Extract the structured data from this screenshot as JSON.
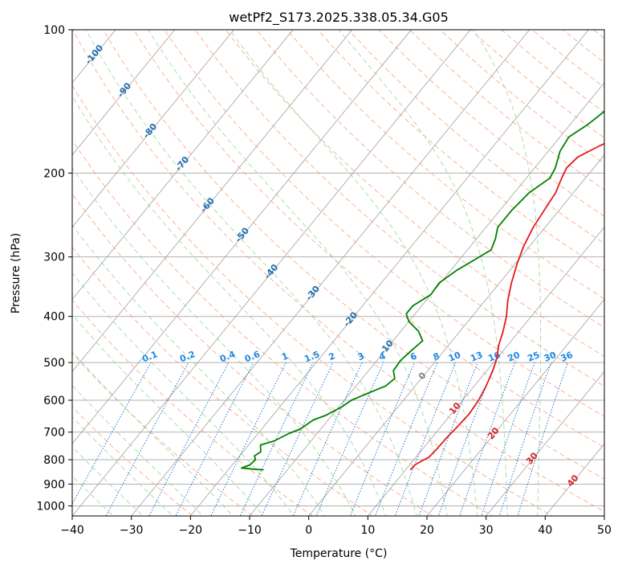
{
  "chart_data": {
    "type": "line",
    "title": "wetPf2_S173.2025.338.05.34.G05",
    "xlabel": "Temperature (°C)",
    "ylabel": "Pressure (hPa)",
    "xlim": [
      -40,
      50
    ],
    "ylim": [
      1050,
      100
    ],
    "y_scale": "log",
    "x_ticks": [
      "−40",
      "−30",
      "−20",
      "−10",
      "0",
      "10",
      "20",
      "30",
      "40",
      "50"
    ],
    "y_ticks": [
      "100",
      "200",
      "300",
      "400",
      "500",
      "600",
      "700",
      "800",
      "900",
      "1000"
    ],
    "grid": true,
    "series": [
      {
        "color": "#e41a1c",
        "points": [
          {
            "p": 840,
            "t": 10.8
          },
          {
            "p": 820,
            "t": 10.9
          },
          {
            "p": 805,
            "t": 11.5
          },
          {
            "p": 790,
            "t": 12.2
          },
          {
            "p": 760,
            "t": 12.4
          },
          {
            "p": 720,
            "t": 12.5
          },
          {
            "p": 680,
            "t": 12.8
          },
          {
            "p": 640,
            "t": 13.0
          },
          {
            "p": 600,
            "t": 12.7
          },
          {
            "p": 560,
            "t": 12.0
          },
          {
            "p": 520,
            "t": 11.0
          },
          {
            "p": 490,
            "t": 10.0
          },
          {
            "p": 460,
            "t": 8.5
          },
          {
            "p": 430,
            "t": 7.3
          },
          {
            "p": 400,
            "t": 5.8
          },
          {
            "p": 370,
            "t": 3.8
          },
          {
            "p": 340,
            "t": 2.0
          },
          {
            "p": 310,
            "t": 0.3
          },
          {
            "p": 285,
            "t": -1.0
          },
          {
            "p": 260,
            "t": -2.0
          },
          {
            "p": 240,
            "t": -2.5
          },
          {
            "p": 220,
            "t": -3.0
          },
          {
            "p": 205,
            "t": -4.0
          },
          {
            "p": 195,
            "t": -4.6
          },
          {
            "p": 185,
            "t": -4.2
          },
          {
            "p": 175,
            "t": -2.0
          },
          {
            "p": 165,
            "t": 1.0
          },
          {
            "p": 155,
            "t": 3.5
          },
          {
            "p": 145,
            "t": 4.8
          },
          {
            "p": 135,
            "t": 5.8
          },
          {
            "p": 125,
            "t": 8.5
          },
          {
            "p": 115,
            "t": 11.5
          },
          {
            "p": 108,
            "t": 14.5
          },
          {
            "p": 100,
            "t": 17.0
          }
        ]
      },
      {
        "color": "#008000",
        "points": [
          {
            "p": 840,
            "t": -14.0
          },
          {
            "p": 837,
            "t": -16.0
          },
          {
            "p": 833,
            "t": -18.0
          },
          {
            "p": 820,
            "t": -17.0
          },
          {
            "p": 800,
            "t": -16.8
          },
          {
            "p": 785,
            "t": -17.5
          },
          {
            "p": 770,
            "t": -17.0
          },
          {
            "p": 745,
            "t": -18.0
          },
          {
            "p": 730,
            "t": -16.2
          },
          {
            "p": 705,
            "t": -14.8
          },
          {
            "p": 690,
            "t": -13.5
          },
          {
            "p": 660,
            "t": -12.5
          },
          {
            "p": 645,
            "t": -11.0
          },
          {
            "p": 620,
            "t": -9.5
          },
          {
            "p": 600,
            "t": -8.8
          },
          {
            "p": 580,
            "t": -7.0
          },
          {
            "p": 560,
            "t": -5.0
          },
          {
            "p": 540,
            "t": -4.5
          },
          {
            "p": 520,
            "t": -5.8
          },
          {
            "p": 495,
            "t": -6.0
          },
          {
            "p": 470,
            "t": -5.5
          },
          {
            "p": 450,
            "t": -5.0
          },
          {
            "p": 430,
            "t": -7.0
          },
          {
            "p": 410,
            "t": -10.0
          },
          {
            "p": 395,
            "t": -11.5
          },
          {
            "p": 380,
            "t": -11.5
          },
          {
            "p": 360,
            "t": -10.0
          },
          {
            "p": 340,
            "t": -10.2
          },
          {
            "p": 320,
            "t": -9.0
          },
          {
            "p": 305,
            "t": -7.5
          },
          {
            "p": 290,
            "t": -6.0
          },
          {
            "p": 275,
            "t": -6.8
          },
          {
            "p": 260,
            "t": -8.0
          },
          {
            "p": 240,
            "t": -8.0
          },
          {
            "p": 220,
            "t": -7.5
          },
          {
            "p": 205,
            "t": -6.0
          },
          {
            "p": 195,
            "t": -6.5
          },
          {
            "p": 180,
            "t": -8.0
          },
          {
            "p": 168,
            "t": -8.5
          },
          {
            "p": 158,
            "t": -7.0
          },
          {
            "p": 148,
            "t": -6.0
          },
          {
            "p": 138,
            "t": -5.5
          },
          {
            "p": 128,
            "t": -6.0
          },
          {
            "p": 118,
            "t": -5.5
          },
          {
            "p": 110,
            "t": -3.0
          },
          {
            "p": 104,
            "t": -1.0
          },
          {
            "p": 100,
            "t": 0.0
          }
        ]
      }
    ],
    "isotherm_labels": [
      "-100",
      "-90",
      "-80",
      "-70",
      "-60",
      "-50",
      "-40",
      "-30",
      "-20",
      "-10",
      "0",
      "10",
      "20",
      "30",
      "40"
    ],
    "mixing_ratio_labels": [
      "0.1",
      "0.2",
      "0.4",
      "0.6",
      "1",
      "1.5",
      "2",
      "3",
      "4",
      "6",
      "8",
      "10",
      "13",
      "16",
      "20",
      "25",
      "30",
      "36"
    ],
    "colors": {
      "temperature": "#e41a1c",
      "dewpoint": "#008000",
      "isotherm": "#a0a0a0",
      "dry_adiabat": "#fc8d62",
      "moist_adiabat": "#8fcf8f",
      "mixing_ratio": "#1f78d1",
      "isotherm_label_cold": "#1f6fb0",
      "isotherm_label_warm": "#d62728",
      "isotherm_label_zero": "#7f7f7f"
    }
  }
}
